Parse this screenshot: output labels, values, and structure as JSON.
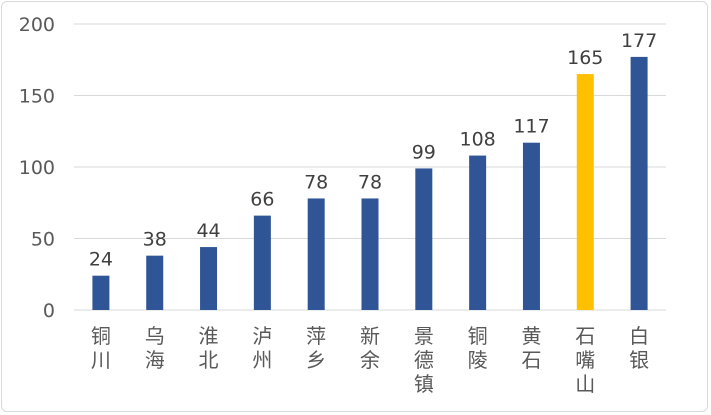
{
  "chart_data": {
    "type": "bar",
    "categories": [
      "铜川",
      "乌海",
      "淮北",
      "泸州",
      "萍乡",
      "新余",
      "景德镇",
      "铜陵",
      "黄石",
      "石嘴山",
      "白银"
    ],
    "values": [
      24,
      38,
      44,
      66,
      78,
      78,
      99,
      108,
      117,
      165,
      177
    ],
    "data_labels": [
      "24",
      "38",
      "44",
      "66",
      "78",
      "78",
      "99",
      "108",
      "117",
      "165",
      "177"
    ],
    "yticks": [
      "0",
      "50",
      "100",
      "150",
      "200"
    ],
    "ylim": [
      0,
      200
    ],
    "grid": true,
    "legend": "none",
    "title": "",
    "xlabel": "",
    "ylabel": "",
    "colors": {
      "bar": "#2f5597",
      "highlight": "#ffc000",
      "grid": "#d9d9d9"
    },
    "highlight_category": "石嘴山"
  }
}
